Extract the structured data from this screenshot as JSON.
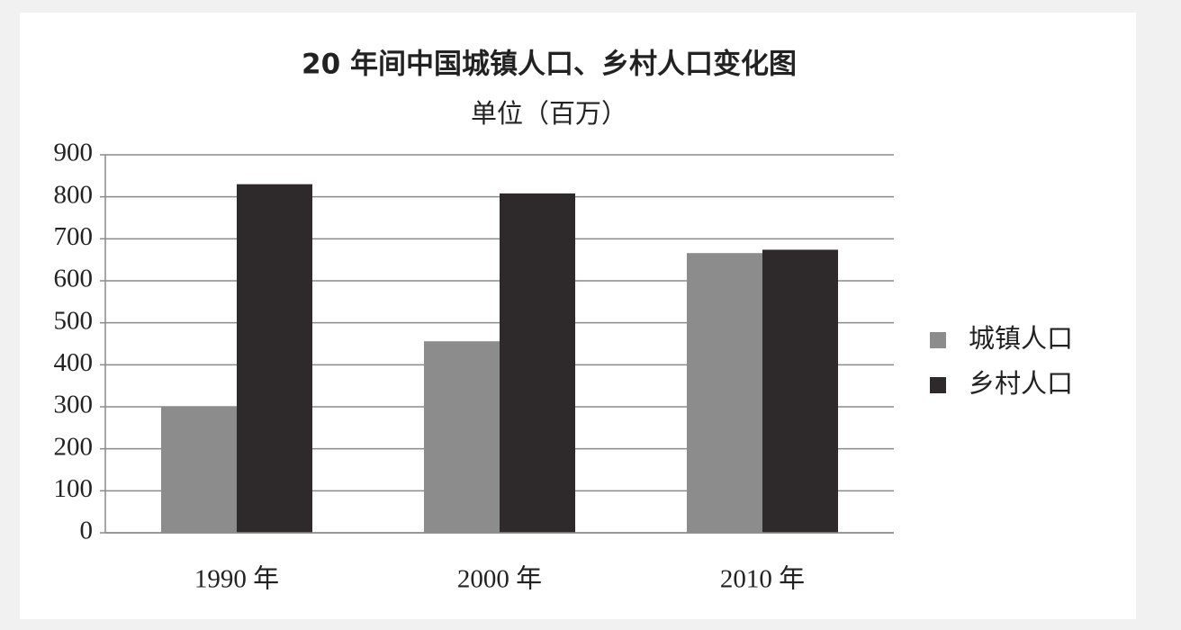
{
  "chart_data": {
    "type": "bar",
    "title": "20 年间中国城镇人口、乡村人口变化图",
    "subtitle": "单位（百万）",
    "categories": [
      "1990 年",
      "2000 年",
      "2010 年"
    ],
    "series": [
      {
        "name": "城镇人口",
        "color": "#8c8c8c",
        "values": [
          300,
          456,
          666
        ]
      },
      {
        "name": "乡村人口",
        "color": "#2e2a2b",
        "values": [
          830,
          808,
          674
        ]
      }
    ],
    "ylim": [
      0,
      900
    ],
    "yticks": [
      0,
      100,
      200,
      300,
      400,
      500,
      600,
      700,
      800,
      900
    ],
    "grid": true,
    "legend": "right"
  }
}
